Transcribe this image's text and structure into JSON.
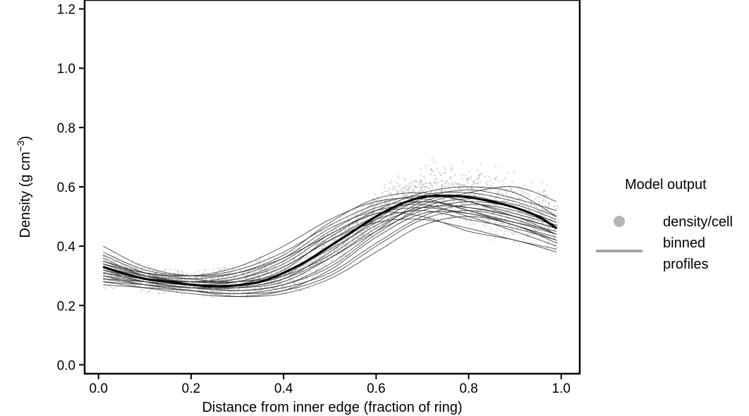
{
  "chart_data": {
    "type": "scatter",
    "title": "",
    "xlabel": "Distance from inner edge (fraction of ring)",
    "ylabel": {
      "prefix": "Density (g cm",
      "superscript": "−3",
      "suffix": ")"
    },
    "xlim": [
      -0.03,
      1.04
    ],
    "ylim": [
      -0.03,
      1.23
    ],
    "x_ticks": [
      "0.0",
      "0.2",
      "0.4",
      "0.6",
      "0.8",
      "1.0"
    ],
    "y_ticks": [
      "0.0",
      "0.2",
      "0.4",
      "0.6",
      "0.8",
      "1.0",
      "1.2"
    ],
    "grid": false,
    "legend": {
      "title": "Model output",
      "position": "right",
      "entries": [
        {
          "label": "density/cell",
          "symbol": "point",
          "color": "#b4b4b4"
        },
        {
          "label_lines": [
            "binned",
            "profiles"
          ],
          "symbol": "line",
          "color": "#9a9a9a"
        }
      ]
    },
    "colors": {
      "points": "#bdbdbd",
      "profiles": "#2b2b2b",
      "mean": "#000000"
    },
    "point_cloud": {
      "name": "density/cell",
      "x_range": [
        0.01,
        0.995
      ],
      "envelope_x": [
        0.01,
        0.03,
        0.05,
        0.1,
        0.2,
        0.3,
        0.4,
        0.45,
        0.5,
        0.55,
        0.6,
        0.65,
        0.7,
        0.75,
        0.8,
        0.85,
        0.9,
        0.95,
        0.98,
        0.995
      ],
      "envelope_low": [
        0.22,
        0.23,
        0.24,
        0.23,
        0.22,
        0.21,
        0.2,
        0.23,
        0.3,
        0.37,
        0.42,
        0.45,
        0.46,
        0.45,
        0.43,
        0.4,
        0.37,
        0.35,
        0.34,
        0.32
      ],
      "envelope_high": [
        0.42,
        0.4,
        0.38,
        0.35,
        0.33,
        0.35,
        0.4,
        0.44,
        0.49,
        0.54,
        0.6,
        0.67,
        0.7,
        0.72,
        0.72,
        0.7,
        0.68,
        0.66,
        0.62,
        0.58
      ]
    },
    "mean_profile": {
      "name": "mean",
      "x": [
        0.01,
        0.05,
        0.1,
        0.15,
        0.2,
        0.25,
        0.3,
        0.35,
        0.4,
        0.45,
        0.5,
        0.55,
        0.6,
        0.65,
        0.7,
        0.75,
        0.8,
        0.85,
        0.9,
        0.95,
        0.99
      ],
      "y": [
        0.33,
        0.31,
        0.29,
        0.28,
        0.27,
        0.265,
        0.268,
        0.28,
        0.31,
        0.35,
        0.4,
        0.45,
        0.5,
        0.54,
        0.565,
        0.57,
        0.565,
        0.55,
        0.53,
        0.5,
        0.46
      ]
    },
    "binned_profiles": [
      {
        "x": [
          0.01,
          0.1,
          0.2,
          0.3,
          0.4,
          0.5,
          0.6,
          0.7,
          0.8,
          0.9,
          0.99
        ],
        "y": [
          0.4,
          0.33,
          0.3,
          0.31,
          0.36,
          0.44,
          0.52,
          0.58,
          0.6,
          0.58,
          0.5
        ]
      },
      {
        "x": [
          0.01,
          0.1,
          0.2,
          0.3,
          0.4,
          0.5,
          0.6,
          0.7,
          0.8,
          0.9,
          0.99
        ],
        "y": [
          0.38,
          0.32,
          0.3,
          0.32,
          0.38,
          0.47,
          0.54,
          0.57,
          0.55,
          0.5,
          0.46
        ]
      },
      {
        "x": [
          0.01,
          0.1,
          0.2,
          0.3,
          0.4,
          0.5,
          0.6,
          0.7,
          0.8,
          0.9,
          0.99
        ],
        "y": [
          0.35,
          0.31,
          0.29,
          0.28,
          0.31,
          0.39,
          0.48,
          0.56,
          0.59,
          0.56,
          0.52
        ]
      },
      {
        "x": [
          0.01,
          0.1,
          0.2,
          0.3,
          0.4,
          0.5,
          0.6,
          0.7,
          0.8,
          0.9,
          0.99
        ],
        "y": [
          0.34,
          0.3,
          0.28,
          0.28,
          0.33,
          0.42,
          0.5,
          0.55,
          0.52,
          0.47,
          0.43
        ]
      },
      {
        "x": [
          0.01,
          0.1,
          0.2,
          0.3,
          0.4,
          0.5,
          0.6,
          0.7,
          0.8,
          0.9,
          0.99
        ],
        "y": [
          0.33,
          0.29,
          0.27,
          0.26,
          0.28,
          0.36,
          0.46,
          0.54,
          0.58,
          0.6,
          0.55
        ]
      },
      {
        "x": [
          0.01,
          0.1,
          0.2,
          0.3,
          0.4,
          0.5,
          0.6,
          0.7,
          0.8,
          0.9,
          0.99
        ],
        "y": [
          0.32,
          0.29,
          0.28,
          0.3,
          0.36,
          0.46,
          0.52,
          0.54,
          0.5,
          0.45,
          0.4
        ]
      },
      {
        "x": [
          0.01,
          0.1,
          0.2,
          0.3,
          0.4,
          0.5,
          0.6,
          0.7,
          0.8,
          0.9,
          0.99
        ],
        "y": [
          0.31,
          0.28,
          0.26,
          0.25,
          0.27,
          0.33,
          0.44,
          0.53,
          0.56,
          0.54,
          0.49
        ]
      },
      {
        "x": [
          0.01,
          0.1,
          0.2,
          0.3,
          0.4,
          0.5,
          0.6,
          0.7,
          0.8,
          0.9,
          0.99
        ],
        "y": [
          0.3,
          0.28,
          0.27,
          0.27,
          0.3,
          0.4,
          0.49,
          0.52,
          0.49,
          0.46,
          0.42
        ]
      },
      {
        "x": [
          0.01,
          0.1,
          0.2,
          0.3,
          0.4,
          0.5,
          0.6,
          0.7,
          0.8,
          0.9,
          0.99
        ],
        "y": [
          0.29,
          0.27,
          0.25,
          0.24,
          0.26,
          0.31,
          0.41,
          0.5,
          0.54,
          0.52,
          0.47
        ]
      },
      {
        "x": [
          0.01,
          0.1,
          0.2,
          0.3,
          0.4,
          0.5,
          0.6,
          0.7,
          0.8,
          0.9,
          0.99
        ],
        "y": [
          0.28,
          0.27,
          0.26,
          0.27,
          0.32,
          0.43,
          0.51,
          0.5,
          0.45,
          0.42,
          0.38
        ]
      },
      {
        "x": [
          0.01,
          0.1,
          0.2,
          0.3,
          0.4,
          0.5,
          0.6,
          0.7,
          0.8,
          0.9,
          0.99
        ],
        "y": [
          0.27,
          0.26,
          0.25,
          0.24,
          0.25,
          0.3,
          0.4,
          0.49,
          0.52,
          0.49,
          0.44
        ]
      },
      {
        "x": [
          0.01,
          0.1,
          0.2,
          0.3,
          0.4,
          0.5,
          0.6,
          0.7,
          0.8,
          0.9,
          0.99
        ],
        "y": [
          0.36,
          0.3,
          0.28,
          0.29,
          0.34,
          0.44,
          0.51,
          0.53,
          0.51,
          0.48,
          0.45
        ]
      },
      {
        "x": [
          0.01,
          0.1,
          0.2,
          0.3,
          0.4,
          0.5,
          0.6,
          0.7,
          0.8,
          0.9,
          0.99
        ],
        "y": [
          0.37,
          0.31,
          0.27,
          0.25,
          0.27,
          0.34,
          0.45,
          0.55,
          0.57,
          0.53,
          0.48
        ]
      },
      {
        "x": [
          0.01,
          0.1,
          0.2,
          0.3,
          0.4,
          0.5,
          0.6,
          0.7,
          0.8,
          0.9,
          0.99
        ],
        "y": [
          0.33,
          0.3,
          0.29,
          0.31,
          0.37,
          0.48,
          0.56,
          0.58,
          0.55,
          0.51,
          0.47
        ]
      },
      {
        "x": [
          0.01,
          0.1,
          0.2,
          0.3,
          0.4,
          0.5,
          0.6,
          0.7,
          0.8,
          0.9,
          0.99
        ],
        "y": [
          0.31,
          0.29,
          0.28,
          0.28,
          0.3,
          0.37,
          0.47,
          0.53,
          0.53,
          0.5,
          0.44
        ]
      },
      {
        "x": [
          0.01,
          0.1,
          0.2,
          0.3,
          0.4,
          0.5,
          0.6,
          0.7,
          0.8,
          0.9,
          0.99
        ],
        "y": [
          0.3,
          0.27,
          0.25,
          0.23,
          0.24,
          0.29,
          0.38,
          0.47,
          0.5,
          0.47,
          0.41
        ]
      },
      {
        "x": [
          0.01,
          0.1,
          0.2,
          0.3,
          0.4,
          0.5,
          0.6,
          0.7,
          0.8,
          0.9,
          0.99
        ],
        "y": [
          0.34,
          0.31,
          0.3,
          0.33,
          0.4,
          0.49,
          0.55,
          0.56,
          0.52,
          0.48,
          0.44
        ]
      },
      {
        "x": [
          0.01,
          0.1,
          0.2,
          0.3,
          0.4,
          0.5,
          0.6,
          0.7,
          0.8,
          0.9,
          0.99
        ],
        "y": [
          0.32,
          0.28,
          0.26,
          0.26,
          0.29,
          0.38,
          0.49,
          0.57,
          0.58,
          0.55,
          0.5
        ]
      },
      {
        "x": [
          0.01,
          0.1,
          0.2,
          0.3,
          0.4,
          0.5,
          0.6,
          0.7,
          0.8,
          0.9,
          0.99
        ],
        "y": [
          0.29,
          0.28,
          0.27,
          0.28,
          0.33,
          0.42,
          0.48,
          0.49,
          0.46,
          0.42,
          0.39
        ]
      },
      {
        "x": [
          0.01,
          0.1,
          0.2,
          0.3,
          0.4,
          0.5,
          0.6,
          0.7,
          0.8,
          0.9,
          0.99
        ],
        "y": [
          0.35,
          0.3,
          0.27,
          0.26,
          0.29,
          0.36,
          0.45,
          0.52,
          0.55,
          0.53,
          0.48
        ]
      },
      {
        "x": [
          0.01,
          0.1,
          0.2,
          0.3,
          0.4,
          0.5,
          0.6,
          0.7,
          0.8,
          0.9,
          0.99
        ],
        "y": [
          0.28,
          0.26,
          0.24,
          0.23,
          0.25,
          0.32,
          0.43,
          0.51,
          0.51,
          0.47,
          0.42
        ]
      },
      {
        "x": [
          0.01,
          0.1,
          0.2,
          0.3,
          0.4,
          0.5,
          0.6,
          0.7,
          0.8,
          0.9,
          0.99
        ],
        "y": [
          0.33,
          0.29,
          0.28,
          0.29,
          0.35,
          0.45,
          0.53,
          0.55,
          0.53,
          0.5,
          0.46
        ]
      }
    ]
  }
}
